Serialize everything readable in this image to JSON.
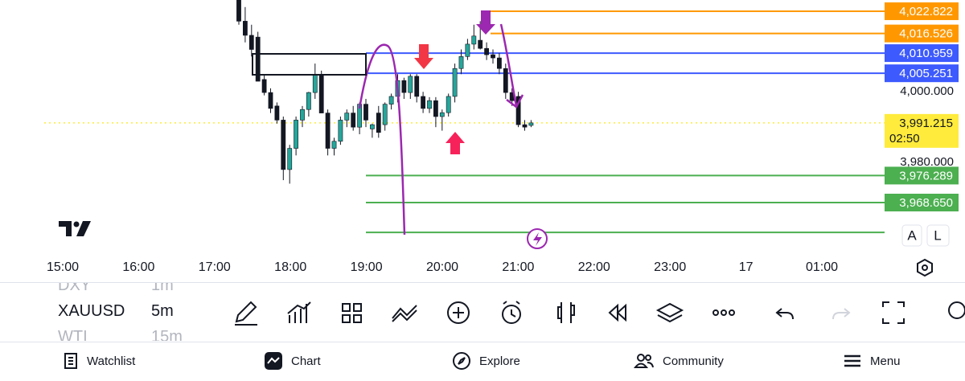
{
  "chart": {
    "ylim": [
      3959,
      4026
    ],
    "up_color": "#26a69a",
    "down_color": "#131722",
    "price_ticks": [
      {
        "value": 4000,
        "label": "4,000.000"
      },
      {
        "value": 3980,
        "label": "3,980.000"
      }
    ],
    "levels": [
      {
        "value": 4022.822,
        "label": "4,022.822",
        "color": "#ff9800"
      },
      {
        "value": 4016.526,
        "label": "4,016.526",
        "color": "#ff9800"
      },
      {
        "value": 4010.959,
        "label": "4,010.959",
        "color": "#3d5afe"
      },
      {
        "value": 4005.251,
        "label": "4,005.251",
        "color": "#3d5afe"
      },
      {
        "value": 3976.289,
        "label": "3,976.289",
        "color": "#4caf50"
      },
      {
        "value": 3968.65,
        "label": "3,968.650",
        "color": "#4caf50"
      }
    ],
    "unlabeled_levels": [
      {
        "value": 3960.2,
        "color": "#4caf50"
      }
    ],
    "last_price": {
      "value": 3991.215,
      "label": "3,991.215",
      "countdown": "02:50",
      "color": "#ffeb3b"
    },
    "time_ticks": [
      "15:00",
      "16:00",
      "17:00",
      "18:00",
      "19:00",
      "20:00",
      "21:00",
      "22:00",
      "23:00",
      "17",
      "01:00"
    ],
    "candles": [
      [
        4026,
        4026,
        4019,
        4020
      ],
      [
        4020,
        4024,
        4014,
        4016
      ],
      [
        4016,
        4019,
        4010,
        4012
      ],
      [
        4015.5,
        4017,
        4003,
        4003
      ],
      [
        4003.5,
        4005,
        3999,
        3999.8
      ],
      [
        3999.8,
        4001,
        3994,
        3995.3
      ],
      [
        3996,
        3997,
        3991,
        3992
      ],
      [
        3992,
        3993,
        3975,
        3978
      ],
      [
        3978,
        3985,
        3974,
        3984
      ],
      [
        3984,
        3993,
        3982,
        3992
      ],
      [
        3992,
        3996,
        3990,
        3995
      ],
      [
        3995,
        4000,
        3993,
        3999.8
      ],
      [
        3999.8,
        4008,
        3998,
        4005
      ],
      [
        4005,
        4006,
        3994,
        3994
      ],
      [
        3994,
        3995,
        3982,
        3984
      ],
      [
        3984,
        3987,
        3982,
        3986
      ],
      [
        3986,
        3993,
        3985,
        3992
      ],
      [
        3992,
        3995,
        3990,
        3994
      ],
      [
        3994,
        3996,
        3989,
        3990
      ],
      [
        3990,
        3997,
        3988,
        3996.5
      ],
      [
        3996.5,
        3998,
        3990,
        3992
      ],
      [
        3989.5,
        3991,
        3987,
        3990.7
      ],
      [
        3994,
        3996,
        3987,
        3988.5
      ],
      [
        3990.7,
        3997,
        3989,
        3996.5
      ],
      [
        3996.5,
        3999.5,
        3995,
        3998.7
      ],
      [
        3998.7,
        4005,
        3997,
        4003.2
      ],
      [
        4003.2,
        4004,
        3998,
        3999.8
      ],
      [
        3999.8,
        4005,
        3998,
        4004.4
      ],
      [
        4004.4,
        4005,
        3997,
        3998.7
      ],
      [
        3998.7,
        4000,
        3994,
        3995.3
      ],
      [
        3995.3,
        3998.5,
        3994,
        3997.5
      ],
      [
        3997.5,
        3998.5,
        3990,
        3993
      ],
      [
        3993,
        3995,
        3989,
        3994.1
      ],
      [
        3994.1,
        3999.5,
        3993,
        3998.7
      ],
      [
        3998.7,
        4008,
        3997,
        4006.6
      ],
      [
        4006.6,
        4012,
        4005,
        4010
      ],
      [
        4010,
        4015,
        4009,
        4013.5
      ],
      [
        4013.5,
        4019,
        4012,
        4015.8
      ],
      [
        4014.6,
        4020,
        4012,
        4012.3
      ],
      [
        4012.3,
        4014,
        4009,
        4010.5
      ],
      [
        4010.5,
        4012,
        4008,
        4009.6
      ],
      [
        4009.6,
        4011,
        4005,
        4006.6
      ],
      [
        4006.6,
        4008,
        3998,
        3999.8
      ],
      [
        3999.8,
        4001,
        3996,
        3997.5
      ],
      [
        3998.7,
        4000,
        3990,
        3990.7
      ],
      [
        3990.7,
        3992,
        3989,
        3990
      ],
      [
        3990.5,
        3992,
        3990,
        3991.2
      ]
    ],
    "chart_buttons": [
      "A",
      "L"
    ]
  },
  "symbols": [
    {
      "name": "DXY",
      "interval": "1m"
    },
    {
      "name": "XAUUSD",
      "interval": "5m"
    },
    {
      "name": "WTI",
      "interval": "15m"
    }
  ],
  "nav": [
    "Watchlist",
    "Chart",
    "Explore",
    "Community",
    "Menu"
  ]
}
